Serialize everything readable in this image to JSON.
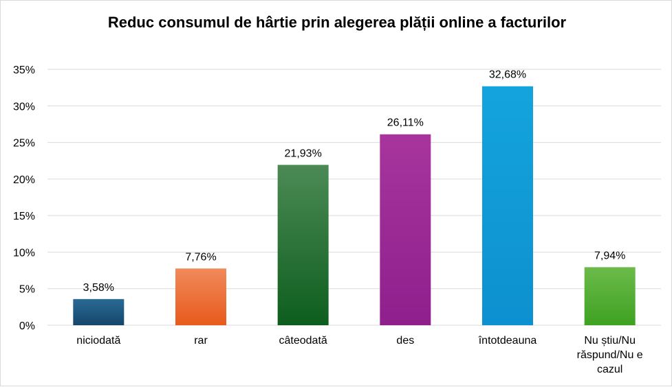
{
  "chart_data": {
    "type": "bar",
    "title": "Reduc consumul de hârtie prin alegerea plății online a facturilor",
    "categories": [
      "niciodată",
      "rar",
      "câteodată",
      "des",
      "întotdeauna",
      "Nu știu/Nu răspund/Nu e cazul"
    ],
    "category_lines": [
      [
        "niciodată"
      ],
      [
        "rar"
      ],
      [
        "câteodată"
      ],
      [
        "des"
      ],
      [
        "întotdeauna"
      ],
      [
        "Nu știu/Nu",
        "răspund/Nu e",
        "cazul"
      ]
    ],
    "values": [
      3.58,
      7.76,
      21.93,
      26.11,
      32.68,
      7.94
    ],
    "value_labels": [
      "3,58%",
      "7,76%",
      "21,93%",
      "26,11%",
      "32,68%",
      "7,94%"
    ],
    "yticks": [
      "0%",
      "5%",
      "10%",
      "15%",
      "20%",
      "25%",
      "30%",
      "35%"
    ],
    "ylim": [
      0,
      35
    ],
    "ytick_step": 5,
    "grid": true,
    "colors": [
      [
        "#2a6a95",
        "#14466a"
      ],
      [
        "#f08a5a",
        "#e85a1c"
      ],
      [
        "#4c8a55",
        "#0d5e1e"
      ],
      [
        "#a8359e",
        "#8e1f8c"
      ],
      [
        "#14a4dc",
        "#0d90cf"
      ],
      [
        "#6cba4a",
        "#3ea222"
      ]
    ]
  }
}
